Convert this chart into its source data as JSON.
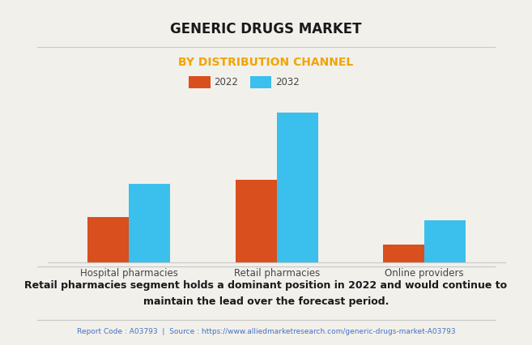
{
  "title": "GENERIC DRUGS MARKET",
  "subtitle": "BY DISTRIBUTION CHANNEL",
  "categories": [
    "Hospital pharmacies",
    "Retail pharmacies",
    "Online providers"
  ],
  "series": [
    {
      "label": "2022",
      "values": [
        30,
        55,
        12
      ],
      "color": "#d94f1e"
    },
    {
      "label": "2032",
      "values": [
        52,
        100,
        28
      ],
      "color": "#3bbfed"
    }
  ],
  "background_color": "#f2f0eb",
  "title_fontsize": 12,
  "subtitle_fontsize": 10,
  "subtitle_color": "#f0a500",
  "annotation_text": "Retail pharmacies segment holds a dominant position in 2022 and would continue to\nmaintain the lead over the forecast period.",
  "footer_text": "Report Code : A03793  |  Source : https://www.alliedmarketresearch.com/generic-drugs-market-A03793",
  "footer_color": "#4472c4",
  "annotation_color": "#1a1a1a",
  "grid_color": "#d8d8d8",
  "bar_width": 0.28,
  "ylim": [
    0,
    115
  ],
  "xticklabel_fontsize": 8.5,
  "legend_fontsize": 8.5,
  "separator_color": "#c8c8c8"
}
